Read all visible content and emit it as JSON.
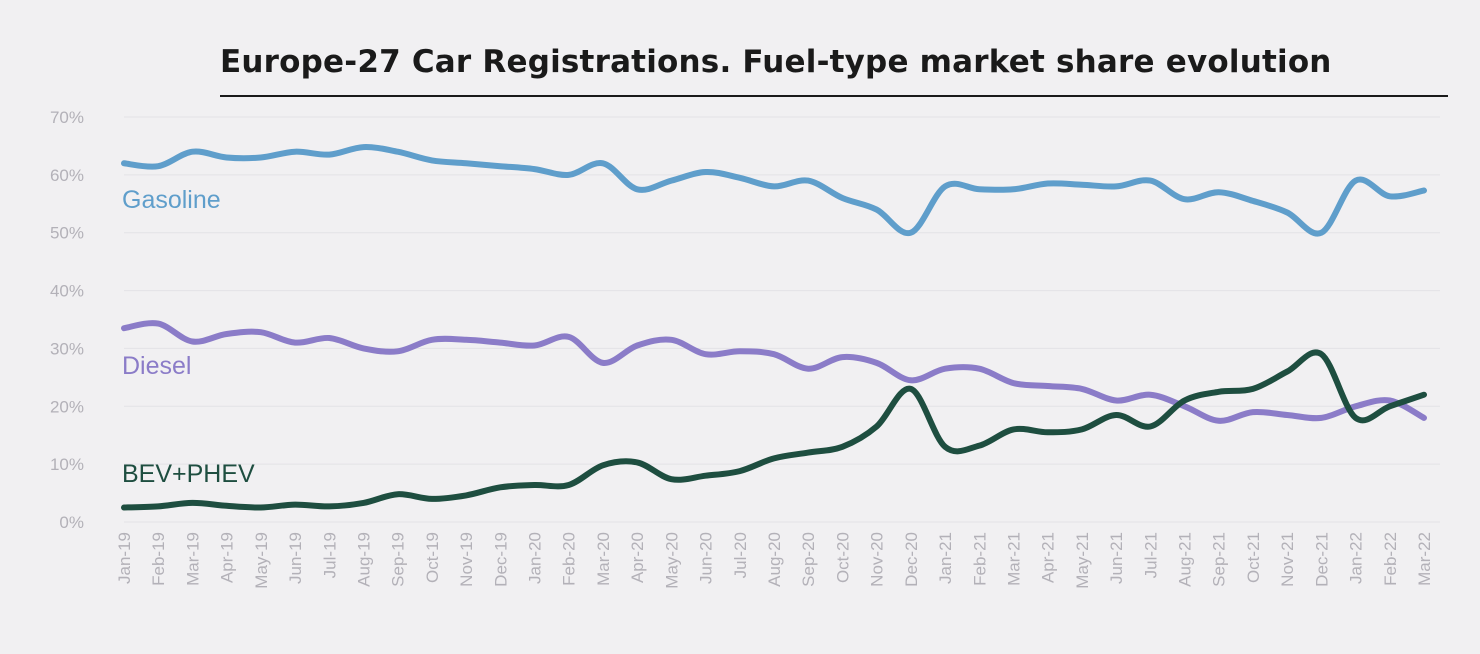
{
  "chart_data": {
    "type": "line",
    "title": "Europe-27 Car Registrations. Fuel-type market share evolution",
    "xlabel": "",
    "ylabel": "",
    "x": [
      "Jan-19",
      "Feb-19",
      "Mar-19",
      "Apr-19",
      "May-19",
      "Jun-19",
      "Jul-19",
      "Aug-19",
      "Sep-19",
      "Oct-19",
      "Nov-19",
      "Dec-19",
      "Jan-20",
      "Feb-20",
      "Mar-20",
      "Apr-20",
      "May-20",
      "Jun-20",
      "Jul-20",
      "Aug-20",
      "Sep-20",
      "Oct-20",
      "Nov-20",
      "Dec-20",
      "Jan-21",
      "Feb-21",
      "Mar-21",
      "Apr-21",
      "May-21",
      "Jun-21",
      "Jul-21",
      "Aug-21",
      "Sep-21",
      "Oct-21",
      "Nov-21",
      "Dec-21",
      "Jan-22",
      "Feb-22",
      "Mar-22"
    ],
    "ylim": [
      0,
      70
    ],
    "yticks": [
      0,
      10,
      20,
      30,
      40,
      50,
      60,
      70
    ],
    "ytick_labels": [
      "0%",
      "10%",
      "20%",
      "30%",
      "40%",
      "50%",
      "60%",
      "70%"
    ],
    "grid": true,
    "legend": "inline labels",
    "series": [
      {
        "name": "Gasoline",
        "color": "#5f9ecb",
        "values": [
          62.0,
          61.5,
          64.0,
          63.0,
          63.0,
          64.0,
          63.5,
          64.8,
          64.0,
          62.5,
          62.0,
          61.5,
          61.0,
          60.0,
          62.0,
          57.5,
          59.0,
          60.5,
          59.5,
          58.0,
          59.0,
          56.0,
          54.0,
          50.0,
          58.0,
          57.5,
          57.5,
          58.5,
          58.3,
          58.0,
          59.0,
          55.8,
          57.0,
          55.5,
          53.5,
          50.0,
          59.0,
          56.3,
          57.3
        ]
      },
      {
        "name": "Diesel",
        "color": "#8b7cc8",
        "values": [
          33.5,
          34.3,
          31.2,
          32.5,
          32.8,
          31.0,
          31.8,
          30.0,
          29.5,
          31.5,
          31.5,
          31.0,
          30.5,
          32.0,
          27.5,
          30.5,
          31.5,
          29.0,
          29.5,
          29.0,
          26.5,
          28.5,
          27.5,
          24.5,
          26.5,
          26.5,
          24.0,
          23.5,
          23.0,
          21.0,
          22.0,
          20.0,
          17.5,
          19.0,
          18.5,
          18.0,
          20.0,
          21.0,
          18.0
        ]
      },
      {
        "name": "BEV+PHEV",
        "color": "#1e4e40",
        "values": [
          2.5,
          2.7,
          3.3,
          2.8,
          2.5,
          3.0,
          2.7,
          3.3,
          4.8,
          4.0,
          4.6,
          6.0,
          6.4,
          6.4,
          9.8,
          10.3,
          7.4,
          8.0,
          8.8,
          11.0,
          12.0,
          13.0,
          16.5,
          23.0,
          13.0,
          13.2,
          16.0,
          15.5,
          16.0,
          18.5,
          16.5,
          21.0,
          22.5,
          23.0,
          26.0,
          29.0,
          18.0,
          20.0,
          22.0
        ]
      }
    ]
  }
}
